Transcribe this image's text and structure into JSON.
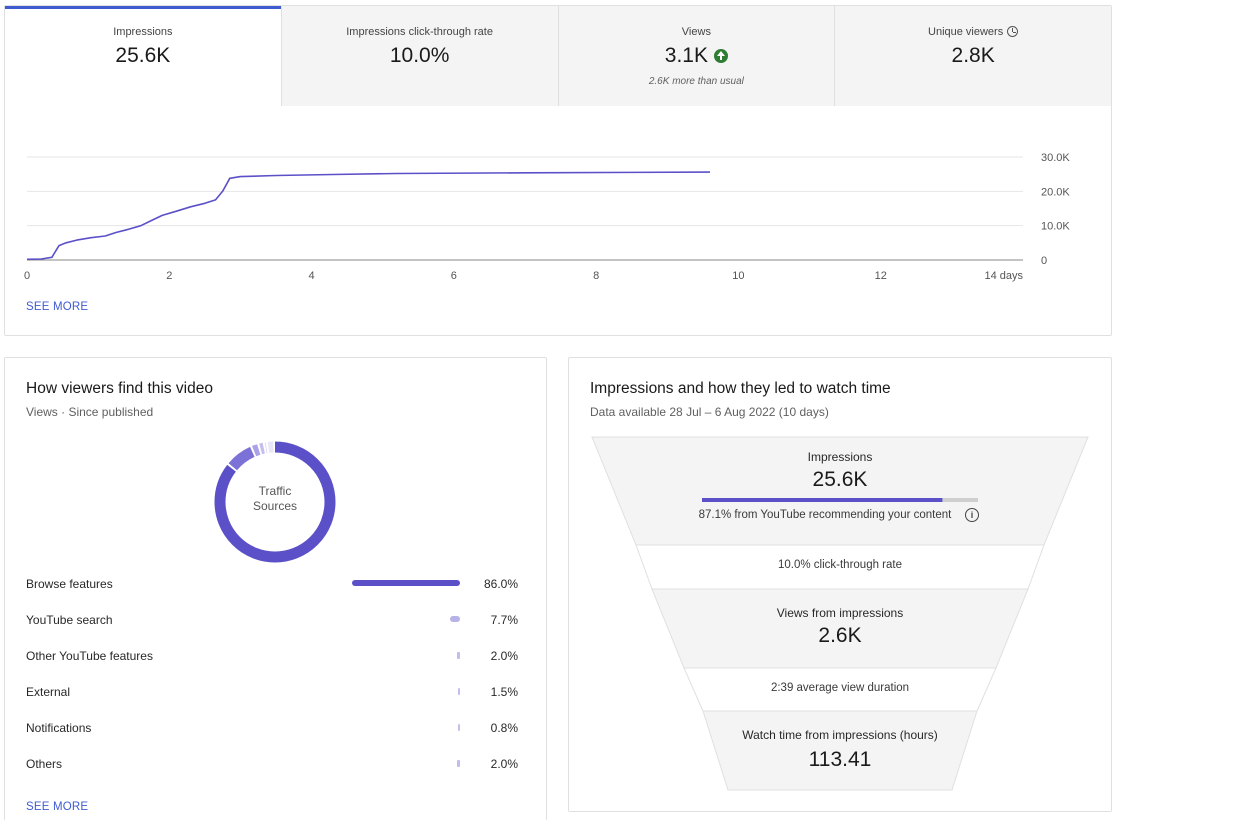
{
  "metrics": [
    {
      "label": "Impressions",
      "value": "25.6K",
      "note": ""
    },
    {
      "label": "Impressions click-through rate",
      "value": "10.0%",
      "note": ""
    },
    {
      "label": "Views",
      "value": "3.1K",
      "note": "2.6K more than usual"
    },
    {
      "label": "Unique viewers",
      "value": "2.8K",
      "note": ""
    }
  ],
  "chart_data": {
    "type": "line",
    "title": "",
    "xlabel": "",
    "ylabel": "",
    "x_ticks": [
      "0",
      "2",
      "4",
      "6",
      "8",
      "10",
      "12",
      "14 days"
    ],
    "y_ticks": [
      "0",
      "10.0K",
      "20.0K",
      "30.0K"
    ],
    "xlim": [
      0,
      14
    ],
    "ylim": [
      0,
      30000
    ],
    "grid": true,
    "series": [
      {
        "name": "",
        "color": "#5b50c8",
        "x": [
          0,
          0.2,
          0.35,
          0.45,
          0.55,
          0.7,
          0.9,
          1.1,
          1.25,
          1.4,
          1.6,
          1.75,
          1.9,
          2.1,
          2.3,
          2.5,
          2.65,
          2.75,
          2.85,
          3.0,
          3.5,
          4.3,
          5.2,
          7.0,
          9.6
        ],
        "y": [
          200,
          300,
          800,
          4200,
          5000,
          5800,
          6500,
          7000,
          8000,
          8800,
          10000,
          11500,
          13000,
          14200,
          15500,
          16500,
          17500,
          20000,
          23800,
          24300,
          24600,
          24900,
          25200,
          25400,
          25600
        ]
      }
    ]
  },
  "see_more_label": "SEE MORE",
  "traffic": {
    "title": "How viewers find this video",
    "subtitle": "Views · Since published",
    "donut_label_1": "Traffic",
    "donut_label_2": "Sources",
    "colors": [
      "#5b50c8",
      "#7b71d6",
      "#a9a2e6",
      "#c4bfee",
      "#d9d6f4",
      "#e8e6f8"
    ],
    "sources": [
      {
        "name": "Browse features",
        "pct": "86.0%",
        "value": 86.0
      },
      {
        "name": "YouTube search",
        "pct": "7.7%",
        "value": 7.7
      },
      {
        "name": "Other YouTube features",
        "pct": "2.0%",
        "value": 2.0
      },
      {
        "name": "External",
        "pct": "1.5%",
        "value": 1.5
      },
      {
        "name": "Notifications",
        "pct": "0.8%",
        "value": 0.8
      },
      {
        "name": "Others",
        "pct": "2.0%",
        "value": 2.0
      }
    ],
    "see_more_label": "SEE MORE"
  },
  "funnel": {
    "title": "Impressions and how they led to watch time",
    "subtitle": "Data available 28 Jul – 6 Aug 2022 (10 days)",
    "impressions_label": "Impressions",
    "impressions_value": "25.6K",
    "recommend_fraction": 0.871,
    "recommend_text": "87.1% from YouTube recommending your content",
    "ctr_text": "10.0% click-through rate",
    "views_label": "Views from impressions",
    "views_value": "2.6K",
    "avg_duration_text": "2:39 average view duration",
    "watch_label": "Watch time from impressions (hours)",
    "watch_value": "113.41",
    "info_glyph": "i"
  }
}
